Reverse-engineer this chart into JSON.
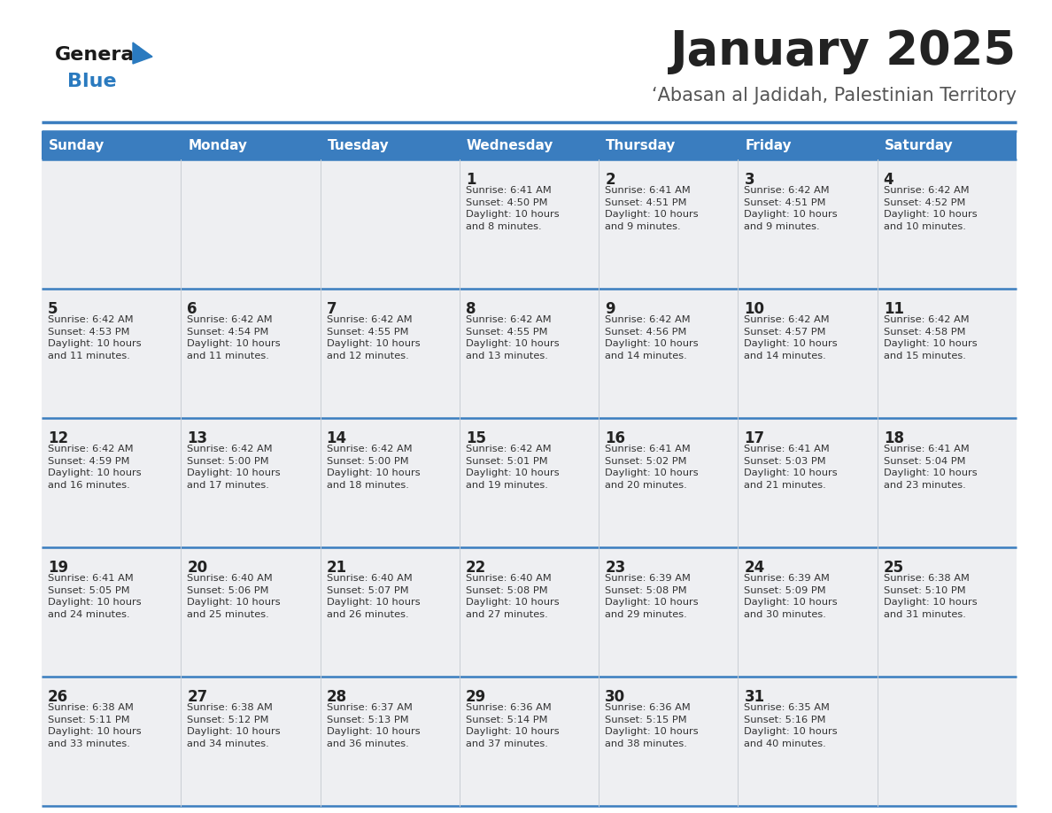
{
  "title": "January 2025",
  "subtitle": "‘Abasan al Jadidah, Palestinian Territory",
  "days_of_week": [
    "Sunday",
    "Monday",
    "Tuesday",
    "Wednesday",
    "Thursday",
    "Friday",
    "Saturday"
  ],
  "header_bg": "#3a7dbf",
  "header_text": "#ffffff",
  "cell_bg": "#eeeff2",
  "divider_color": "#3a7dbf",
  "text_color": "#333333",
  "day_num_color": "#222222",
  "title_color": "#222222",
  "subtitle_color": "#555555",
  "logo_general_color": "#1a1a1a",
  "logo_blue_color": "#2a7abf",
  "weeks": [
    [
      {
        "day": null,
        "info": null
      },
      {
        "day": null,
        "info": null
      },
      {
        "day": null,
        "info": null
      },
      {
        "day": 1,
        "info": "Sunrise: 6:41 AM\nSunset: 4:50 PM\nDaylight: 10 hours\nand 8 minutes."
      },
      {
        "day": 2,
        "info": "Sunrise: 6:41 AM\nSunset: 4:51 PM\nDaylight: 10 hours\nand 9 minutes."
      },
      {
        "day": 3,
        "info": "Sunrise: 6:42 AM\nSunset: 4:51 PM\nDaylight: 10 hours\nand 9 minutes."
      },
      {
        "day": 4,
        "info": "Sunrise: 6:42 AM\nSunset: 4:52 PM\nDaylight: 10 hours\nand 10 minutes."
      }
    ],
    [
      {
        "day": 5,
        "info": "Sunrise: 6:42 AM\nSunset: 4:53 PM\nDaylight: 10 hours\nand 11 minutes."
      },
      {
        "day": 6,
        "info": "Sunrise: 6:42 AM\nSunset: 4:54 PM\nDaylight: 10 hours\nand 11 minutes."
      },
      {
        "day": 7,
        "info": "Sunrise: 6:42 AM\nSunset: 4:55 PM\nDaylight: 10 hours\nand 12 minutes."
      },
      {
        "day": 8,
        "info": "Sunrise: 6:42 AM\nSunset: 4:55 PM\nDaylight: 10 hours\nand 13 minutes."
      },
      {
        "day": 9,
        "info": "Sunrise: 6:42 AM\nSunset: 4:56 PM\nDaylight: 10 hours\nand 14 minutes."
      },
      {
        "day": 10,
        "info": "Sunrise: 6:42 AM\nSunset: 4:57 PM\nDaylight: 10 hours\nand 14 minutes."
      },
      {
        "day": 11,
        "info": "Sunrise: 6:42 AM\nSunset: 4:58 PM\nDaylight: 10 hours\nand 15 minutes."
      }
    ],
    [
      {
        "day": 12,
        "info": "Sunrise: 6:42 AM\nSunset: 4:59 PM\nDaylight: 10 hours\nand 16 minutes."
      },
      {
        "day": 13,
        "info": "Sunrise: 6:42 AM\nSunset: 5:00 PM\nDaylight: 10 hours\nand 17 minutes."
      },
      {
        "day": 14,
        "info": "Sunrise: 6:42 AM\nSunset: 5:00 PM\nDaylight: 10 hours\nand 18 minutes."
      },
      {
        "day": 15,
        "info": "Sunrise: 6:42 AM\nSunset: 5:01 PM\nDaylight: 10 hours\nand 19 minutes."
      },
      {
        "day": 16,
        "info": "Sunrise: 6:41 AM\nSunset: 5:02 PM\nDaylight: 10 hours\nand 20 minutes."
      },
      {
        "day": 17,
        "info": "Sunrise: 6:41 AM\nSunset: 5:03 PM\nDaylight: 10 hours\nand 21 minutes."
      },
      {
        "day": 18,
        "info": "Sunrise: 6:41 AM\nSunset: 5:04 PM\nDaylight: 10 hours\nand 23 minutes."
      }
    ],
    [
      {
        "day": 19,
        "info": "Sunrise: 6:41 AM\nSunset: 5:05 PM\nDaylight: 10 hours\nand 24 minutes."
      },
      {
        "day": 20,
        "info": "Sunrise: 6:40 AM\nSunset: 5:06 PM\nDaylight: 10 hours\nand 25 minutes."
      },
      {
        "day": 21,
        "info": "Sunrise: 6:40 AM\nSunset: 5:07 PM\nDaylight: 10 hours\nand 26 minutes."
      },
      {
        "day": 22,
        "info": "Sunrise: 6:40 AM\nSunset: 5:08 PM\nDaylight: 10 hours\nand 27 minutes."
      },
      {
        "day": 23,
        "info": "Sunrise: 6:39 AM\nSunset: 5:08 PM\nDaylight: 10 hours\nand 29 minutes."
      },
      {
        "day": 24,
        "info": "Sunrise: 6:39 AM\nSunset: 5:09 PM\nDaylight: 10 hours\nand 30 minutes."
      },
      {
        "day": 25,
        "info": "Sunrise: 6:38 AM\nSunset: 5:10 PM\nDaylight: 10 hours\nand 31 minutes."
      }
    ],
    [
      {
        "day": 26,
        "info": "Sunrise: 6:38 AM\nSunset: 5:11 PM\nDaylight: 10 hours\nand 33 minutes."
      },
      {
        "day": 27,
        "info": "Sunrise: 6:38 AM\nSunset: 5:12 PM\nDaylight: 10 hours\nand 34 minutes."
      },
      {
        "day": 28,
        "info": "Sunrise: 6:37 AM\nSunset: 5:13 PM\nDaylight: 10 hours\nand 36 minutes."
      },
      {
        "day": 29,
        "info": "Sunrise: 6:36 AM\nSunset: 5:14 PM\nDaylight: 10 hours\nand 37 minutes."
      },
      {
        "day": 30,
        "info": "Sunrise: 6:36 AM\nSunset: 5:15 PM\nDaylight: 10 hours\nand 38 minutes."
      },
      {
        "day": 31,
        "info": "Sunrise: 6:35 AM\nSunset: 5:16 PM\nDaylight: 10 hours\nand 40 minutes."
      },
      {
        "day": null,
        "info": null
      }
    ]
  ]
}
